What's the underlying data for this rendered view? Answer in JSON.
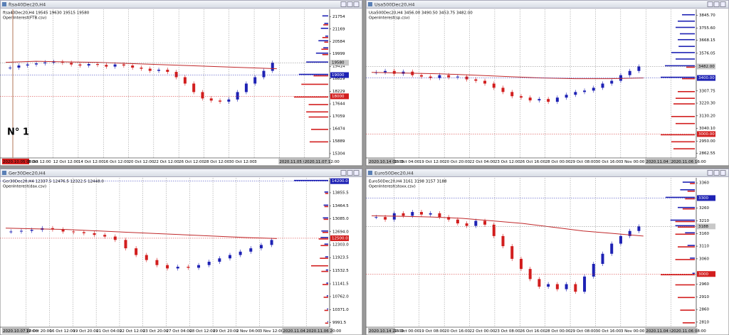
{
  "panels": [
    {
      "title": "ftsa40Dec20,H4",
      "info": "ftsa40Dec20,H4  19545 19630 19515 19580",
      "indicator": "OpenInterest(FTB.csv)",
      "annotation": "N° 1",
      "ylim": [
        15100,
        22100
      ],
      "yticks": [
        21754,
        21169,
        20584,
        19999,
        19414,
        18829,
        18229,
        17644,
        17059,
        16474,
        15889,
        15304
      ],
      "levels": [
        {
          "value": 19580,
          "color": "#c8c8c8"
        },
        {
          "value": 19000,
          "color": "#1e22b4"
        },
        {
          "value": 18000,
          "color": "#d21e1e"
        }
      ],
      "time_labels": [
        "2020.10.05 08:00",
        "8 Oct 12:00",
        "12 Oct 12:00",
        "14 Oct 12:00",
        "16 Oct 12:00",
        "20 Oct 12:00",
        "22 Oct 12:00",
        "26 Oct 12:00",
        "28 Oct 12:00",
        "30 Oct 12:00",
        "3",
        "2020.11.05 04:00",
        "2020.11.07 12:00"
      ],
      "closes": [
        19350,
        19450,
        19500,
        19550,
        19600,
        19620,
        19580,
        19500,
        19450,
        19520,
        19480,
        19400,
        19500,
        19450,
        19350,
        19300,
        19200,
        19250,
        19150,
        18900,
        18600,
        18200,
        17900,
        17800,
        17750,
        17850,
        18200,
        18600,
        18900,
        19200,
        19580
      ],
      "ma": [
        19600,
        19650,
        19620,
        19600,
        19550,
        19500,
        19450,
        19400,
        19350,
        19300
      ],
      "oi": [
        {
          "price": 21754,
          "blue": 12,
          "red": 0
        },
        {
          "price": 21400,
          "blue": 8,
          "red": 10
        },
        {
          "price": 21169,
          "blue": 15,
          "red": 0
        },
        {
          "price": 20800,
          "blue": 6,
          "red": 12
        },
        {
          "price": 20584,
          "blue": 20,
          "red": 8
        },
        {
          "price": 20250,
          "blue": 10,
          "red": 14
        },
        {
          "price": 19999,
          "blue": 25,
          "red": 12
        },
        {
          "price": 19580,
          "blue": 45,
          "red": 0
        },
        {
          "price": 19000,
          "blue": 60,
          "red": 30
        },
        {
          "price": 18600,
          "blue": 0,
          "red": 55
        },
        {
          "price": 18000,
          "blue": 0,
          "red": 70
        },
        {
          "price": 17644,
          "blue": 0,
          "red": 40
        },
        {
          "price": 17300,
          "blue": 0,
          "red": 45
        },
        {
          "price": 17059,
          "blue": 0,
          "red": 40
        },
        {
          "price": 16474,
          "blue": 0,
          "red": 35
        },
        {
          "price": 15889,
          "blue": 0,
          "red": 38
        }
      ]
    },
    {
      "title": "Usa500Dec20,H4",
      "info": "Usa500Dec20,H4  3456.00 3490.50 3453.75 3482.00",
      "indicator": "OpenInterest(sp.csv)",
      "ylim": [
        2830,
        3890
      ],
      "yticks": [
        {
          "value": 3845.7,
          "label": "3845.70"
        },
        {
          "value": 3755.6,
          "label": "3755.60"
        },
        {
          "value": 3668.15,
          "label": "3668.15"
        },
        {
          "value": 3576.05,
          "label": "3576.05"
        },
        {
          "value": 3307.75,
          "label": "3307.75"
        },
        {
          "value": 3220.3,
          "label": "3220.30"
        },
        {
          "value": 3130.2,
          "label": "3130.20"
        },
        {
          "value": 3040.1,
          "label": "3040.10"
        },
        {
          "value": 2950,
          "label": "2950.00"
        },
        {
          "value": 2862.55,
          "label": "2862.55"
        }
      ],
      "levels": [
        {
          "value": 3482,
          "label": "3482.00",
          "color": "#c8c8c8"
        },
        {
          "value": 3400,
          "label": "3400.00",
          "color": "#1e22b4"
        },
        {
          "value": 3000,
          "label": "3000.00",
          "color": "#d21e1e"
        }
      ],
      "time_labels": [
        "2020.10.14 00:00",
        "16 Oct 04:00",
        "19 Oct 12:00",
        "20 Oct 20:00",
        "22 Oct 04:00",
        "23 Oct 12:00",
        "26 Oct 16:00",
        "28 Oct 00:00",
        "29 Oct 08:00",
        "30 Oct 16:00",
        "3 Nov 00:00",
        "2020.11.04 16:00",
        "2020.11.06 16:00"
      ],
      "closes": [
        3440,
        3450,
        3430,
        3445,
        3420,
        3410,
        3400,
        3420,
        3405,
        3410,
        3390,
        3380,
        3360,
        3330,
        3300,
        3270,
        3260,
        3240,
        3250,
        3230,
        3260,
        3280,
        3300,
        3310,
        3330,
        3360,
        3380,
        3420,
        3450,
        3482
      ],
      "ma": [
        3440,
        3435,
        3430,
        3420,
        3410,
        3400,
        3395,
        3395,
        3400
      ],
      "oi": [
        {
          "price": 3845.7,
          "blue": 30,
          "red": 0
        },
        {
          "price": 3800,
          "blue": 40,
          "red": 0
        },
        {
          "price": 3755.6,
          "blue": 45,
          "red": 0
        },
        {
          "price": 3710,
          "blue": 35,
          "red": 0
        },
        {
          "price": 3668.15,
          "blue": 40,
          "red": 0
        },
        {
          "price": 3620,
          "blue": 38,
          "red": 0
        },
        {
          "price": 3576.05,
          "blue": 55,
          "red": 0
        },
        {
          "price": 3530,
          "blue": 45,
          "red": 0
        },
        {
          "price": 3482,
          "blue": 70,
          "red": 20
        },
        {
          "price": 3400,
          "blue": 80,
          "red": 30
        },
        {
          "price": 3307.75,
          "blue": 0,
          "red": 40
        },
        {
          "price": 3260,
          "blue": 0,
          "red": 45
        },
        {
          "price": 3220.3,
          "blue": 0,
          "red": 50
        },
        {
          "price": 3130.2,
          "blue": 0,
          "red": 55
        },
        {
          "price": 3080,
          "blue": 0,
          "red": 45
        },
        {
          "price": 3000,
          "blue": 0,
          "red": 80
        },
        {
          "price": 2950,
          "blue": 0,
          "red": 55
        },
        {
          "price": 2900,
          "blue": 0,
          "red": 50
        }
      ]
    },
    {
      "title": "Ger30Dec20,H4",
      "info": "Ger30Dec20,H4  12337.5 12476.5 12322.5 12448.0",
      "indicator": "OpenInterest(dax.csv)",
      "ylim": [
        9850,
        14300
      ],
      "yticks": [
        {
          "value": 13855.5,
          "label": "13855.5"
        },
        {
          "value": 13464.5,
          "label": "13464.5"
        },
        {
          "value": 13085,
          "label": "13085.0"
        },
        {
          "value": 12694,
          "label": "12694.0"
        },
        {
          "value": 12303,
          "label": "12303.0"
        },
        {
          "value": 11923.5,
          "label": "11923.5"
        },
        {
          "value": 11532.5,
          "label": "11532.5"
        },
        {
          "value": 11141.5,
          "label": "11141.5"
        },
        {
          "value": 10762,
          "label": "10762.0"
        },
        {
          "value": 10371,
          "label": "10371.0"
        },
        {
          "value": 9991.5,
          "label": "9991.5"
        }
      ],
      "levels": [
        {
          "value": 14200,
          "label": "14200.0",
          "color": "#1e22b4"
        },
        {
          "value": 12500,
          "label": "12500.0",
          "color": "#d21e1e"
        }
      ],
      "time_labels": [
        "2020.10.07 20:00",
        "12 Oct 20:00",
        "16 Oct 12:00",
        "19 Oct 20:00",
        "21 Oct 04:00",
        "22 Oct 12:00",
        "23 Oct 20:00",
        "27 Oct 04:00",
        "28 Oct 12:00",
        "29 Oct 20:00",
        "2 Nov 04:00",
        "3 Nov 12:00",
        "2020.11.04 20:00",
        "2020.11.06 20:00"
      ],
      "closes": [
        12700,
        12720,
        12750,
        12800,
        12760,
        12700,
        12680,
        12650,
        12600,
        12550,
        12450,
        12200,
        12000,
        11850,
        11700,
        11600,
        11650,
        11620,
        11700,
        11800,
        11900,
        12000,
        12100,
        12200,
        12300,
        12448
      ],
      "ma": [
        12800,
        12780,
        12760,
        12720,
        12680,
        12640,
        12600,
        12560,
        12520,
        12490
      ],
      "oi": [
        {
          "price": 14200,
          "blue": 90,
          "red": 0
        },
        {
          "price": 13855.5,
          "blue": 10,
          "red": 8
        },
        {
          "price": 13464.5,
          "blue": 12,
          "red": 10
        },
        {
          "price": 13085,
          "blue": 14,
          "red": 12
        },
        {
          "price": 12694,
          "blue": 18,
          "red": 15
        },
        {
          "price": 12500,
          "blue": 20,
          "red": 25
        },
        {
          "price": 12303,
          "blue": 10,
          "red": 20
        },
        {
          "price": 11923.5,
          "blue": 8,
          "red": 22
        },
        {
          "price": 11700,
          "blue": 0,
          "red": 45
        },
        {
          "price": 11532.5,
          "blue": 6,
          "red": 18
        },
        {
          "price": 11141.5,
          "blue": 5,
          "red": 15
        },
        {
          "price": 10762,
          "blue": 4,
          "red": 12
        },
        {
          "price": 10371,
          "blue": 3,
          "red": 10
        },
        {
          "price": 9991.5,
          "blue": 2,
          "red": 8
        }
      ]
    },
    {
      "title": "Euro50Dec20,H4",
      "info": "Euro50Dec20,H4  3161 3198 3157 3188",
      "indicator": "OpenInterest(stoxx.csv)",
      "ylim": [
        2790,
        3380
      ],
      "yticks": [
        3360,
        3260,
        3210,
        3160,
        3110,
        3060,
        2960,
        2910,
        2860,
        2810
      ],
      "levels": [
        {
          "value": 3300,
          "color": "#1e22b4"
        },
        {
          "value": 3188,
          "color": "#c8c8c8"
        },
        {
          "value": 3000,
          "color": "#d21e1e"
        }
      ],
      "time_labels": [
        "2020.10.14 20:00",
        "16 Oct 00:00",
        "19 Oct 08:00",
        "20 Oct 16:00",
        "22 Oct 00:00",
        "23 Oct 08:00",
        "26 Oct 16:00",
        "28 Oct 00:00",
        "29 Oct 08:00",
        "30 Oct 16:00",
        "3 Nov 00:00",
        "2020.11.04 00:00",
        "2020.11.06 08:00"
      ],
      "closes": [
        3225,
        3215,
        3240,
        3230,
        3245,
        3235,
        3240,
        3225,
        3215,
        3200,
        3190,
        3210,
        3195,
        3150,
        3110,
        3060,
        3020,
        2980,
        2950,
        2960,
        2940,
        2960,
        2930,
        2990,
        3040,
        3080,
        3120,
        3150,
        3170,
        3188
      ],
      "ma": [
        3230,
        3228,
        3225,
        3220,
        3210,
        3200,
        3185,
        3170,
        3160,
        3150
      ],
      "oi": [
        {
          "price": 3360,
          "blue": 25,
          "red": 10
        },
        {
          "price": 3330,
          "blue": 30,
          "red": 15
        },
        {
          "price": 3300,
          "blue": 60,
          "red": 20
        },
        {
          "price": 3260,
          "blue": 35,
          "red": 25
        },
        {
          "price": 3210,
          "blue": 50,
          "red": 40
        },
        {
          "price": 3188,
          "blue": 40,
          "red": 35
        },
        {
          "price": 3160,
          "blue": 20,
          "red": 40
        },
        {
          "price": 3110,
          "blue": 15,
          "red": 35
        },
        {
          "price": 3060,
          "blue": 10,
          "red": 40
        },
        {
          "price": 3000,
          "blue": 5,
          "red": 70
        },
        {
          "price": 2960,
          "blue": 0,
          "red": 40
        },
        {
          "price": 2910,
          "blue": 0,
          "red": 35
        },
        {
          "price": 2860,
          "blue": 0,
          "red": 30
        },
        {
          "price": 2810,
          "blue": 0,
          "red": 25
        }
      ]
    }
  ]
}
